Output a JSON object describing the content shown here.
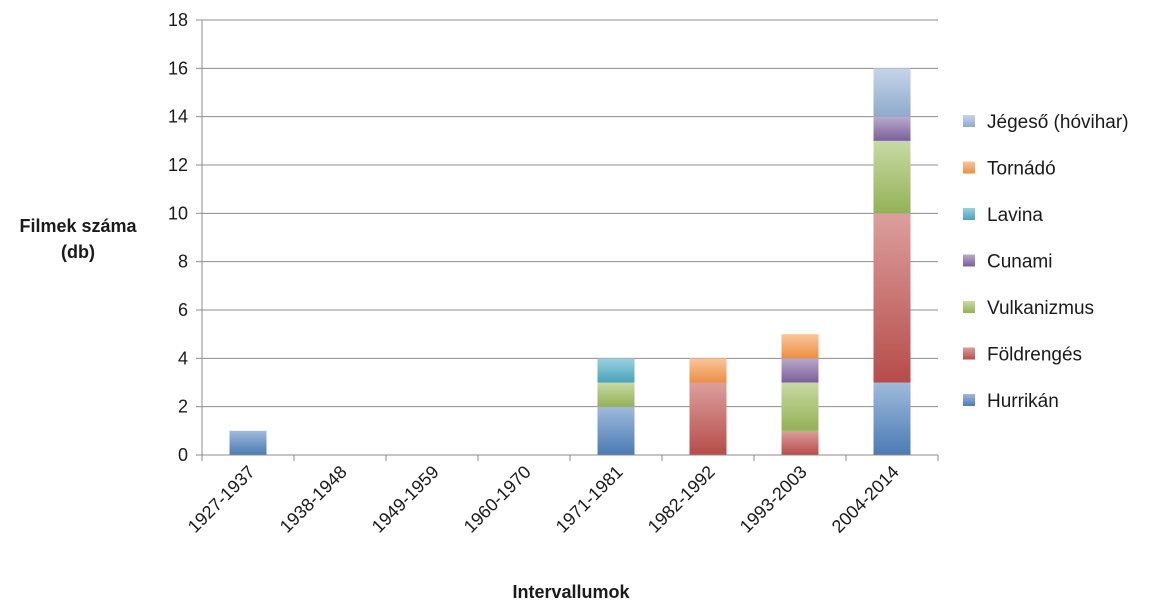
{
  "chart_data": {
    "type": "bar",
    "stacked": true,
    "title": "",
    "ylabel": [
      "Filmek száma",
      "(db)"
    ],
    "xlabel": "Intervallumok",
    "ylim": [
      0,
      18
    ],
    "ytick_step": 2,
    "grid": true,
    "legend_position": "right",
    "categories": [
      "1927-1937",
      "1938-1948",
      "1949-1959",
      "1960-1970",
      "1971-1981",
      "1982-1992",
      "1993-2003",
      "2004-2014"
    ],
    "series": [
      {
        "name": "Hurrikán",
        "color": "#4f81bd",
        "values": [
          1,
          0,
          0,
          0,
          2,
          0,
          0,
          3
        ]
      },
      {
        "name": "Földrengés",
        "color": "#c0504d",
        "values": [
          0,
          0,
          0,
          0,
          0,
          3,
          1,
          7
        ]
      },
      {
        "name": "Vulkanizmus",
        "color": "#9bbb59",
        "values": [
          0,
          0,
          0,
          0,
          1,
          0,
          2,
          3
        ]
      },
      {
        "name": "Cunami",
        "color": "#8064a2",
        "values": [
          0,
          0,
          0,
          0,
          0,
          0,
          1,
          1
        ]
      },
      {
        "name": "Lavina",
        "color": "#4bacc6",
        "values": [
          0,
          0,
          0,
          0,
          1,
          0,
          0,
          0
        ]
      },
      {
        "name": "Tornádó",
        "color": "#f79646",
        "values": [
          0,
          0,
          0,
          0,
          0,
          1,
          1,
          0
        ]
      },
      {
        "name": "Jégeső (hóvihar)",
        "color": "#95b3d7",
        "values": [
          0,
          0,
          0,
          0,
          0,
          0,
          0,
          2
        ]
      }
    ]
  }
}
